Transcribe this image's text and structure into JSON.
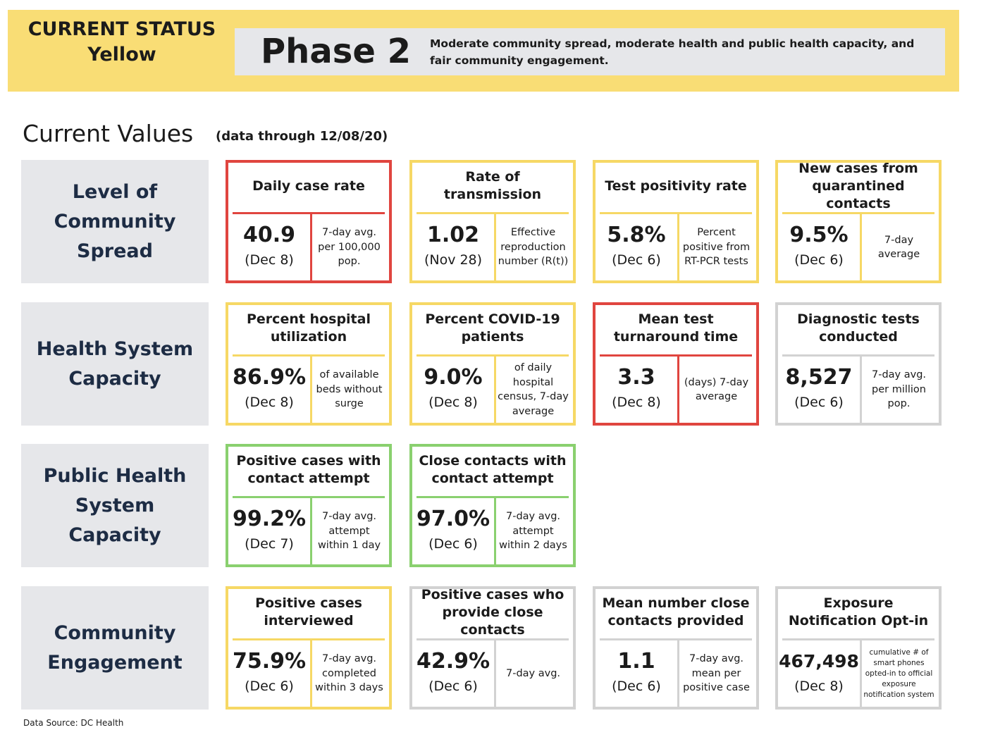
{
  "header": {
    "status_line1": "CURRENT STATUS",
    "status_line2": "Yellow",
    "phase": "Phase 2",
    "description": "Moderate community spread, moderate health and public health capacity, and fair community engagement.",
    "status_color": "#f9dd75"
  },
  "current_values": {
    "title": "Current Values",
    "note": "(data through 12/08/20)"
  },
  "categories": [
    {
      "label": "Level of Community Spread"
    },
    {
      "label": "Health System Capacity"
    },
    {
      "label": "Public Health System Capacity"
    },
    {
      "label": "Community Engagement"
    }
  ],
  "metrics": [
    {
      "title": "Daily case rate",
      "value": "40.9",
      "date": "(Dec 8)",
      "note": "7-day avg. per 100,000 pop.",
      "status": "red"
    },
    {
      "title": "Rate of transmission",
      "value": "1.02",
      "date": "(Nov 28)",
      "note": "Effective reproduction number (R(t))",
      "status": "yellow"
    },
    {
      "title": "Test positivity rate",
      "value": "5.8%",
      "date": "(Dec 6)",
      "note": "Percent positive from RT-PCR tests",
      "status": "yellow"
    },
    {
      "title": "New cases from quarantined contacts",
      "value": "9.5%",
      "date": "(Dec 6)",
      "note": "7-day average",
      "status": "yellow"
    },
    {
      "title": "Percent hospital utilization",
      "value": "86.9%",
      "date": "(Dec 8)",
      "note": "of available beds without surge",
      "status": "yellow"
    },
    {
      "title": "Percent COVID-19 patients",
      "value": "9.0%",
      "date": "(Dec 8)",
      "note": "of daily hospital census, 7-day average",
      "status": "yellow"
    },
    {
      "title": "Mean test turnaround time",
      "value": "3.3",
      "date": "(Dec 8)",
      "note": "(days) 7-day average",
      "status": "red"
    },
    {
      "title": "Diagnostic tests conducted",
      "value": "8,527",
      "date": "(Dec 6)",
      "note": "7-day avg. per million pop.",
      "status": "gray"
    },
    {
      "title": "Positive cases with contact attempt",
      "value": "99.2%",
      "date": "(Dec 7)",
      "note": "7-day avg. attempt within 1 day",
      "status": "green"
    },
    {
      "title": "Close contacts with contact attempt",
      "value": "97.0%",
      "date": "(Dec 6)",
      "note": "7-day avg. attempt within 2 days",
      "status": "green"
    },
    {
      "title": "Positive cases interviewed",
      "value": "75.9%",
      "date": "(Dec 6)",
      "note": "7-day avg. completed within 3 days",
      "status": "yellow"
    },
    {
      "title": "Positive cases who provide close contacts",
      "value": "42.9%",
      "date": "(Dec 6)",
      "note": "7-day avg.",
      "status": "gray"
    },
    {
      "title": "Mean number close contacts provided",
      "value": "1.1",
      "date": "(Dec 6)",
      "note": "7-day avg. mean per positive case",
      "status": "gray"
    },
    {
      "title": "Exposure Notification Opt-in",
      "value": "467,498",
      "date": "(Dec 8)",
      "note": "cumulative # of smart phones opted-in to official exposure notification system",
      "status": "gray"
    }
  ],
  "footer": {
    "source": "Data Source: DC Health"
  }
}
